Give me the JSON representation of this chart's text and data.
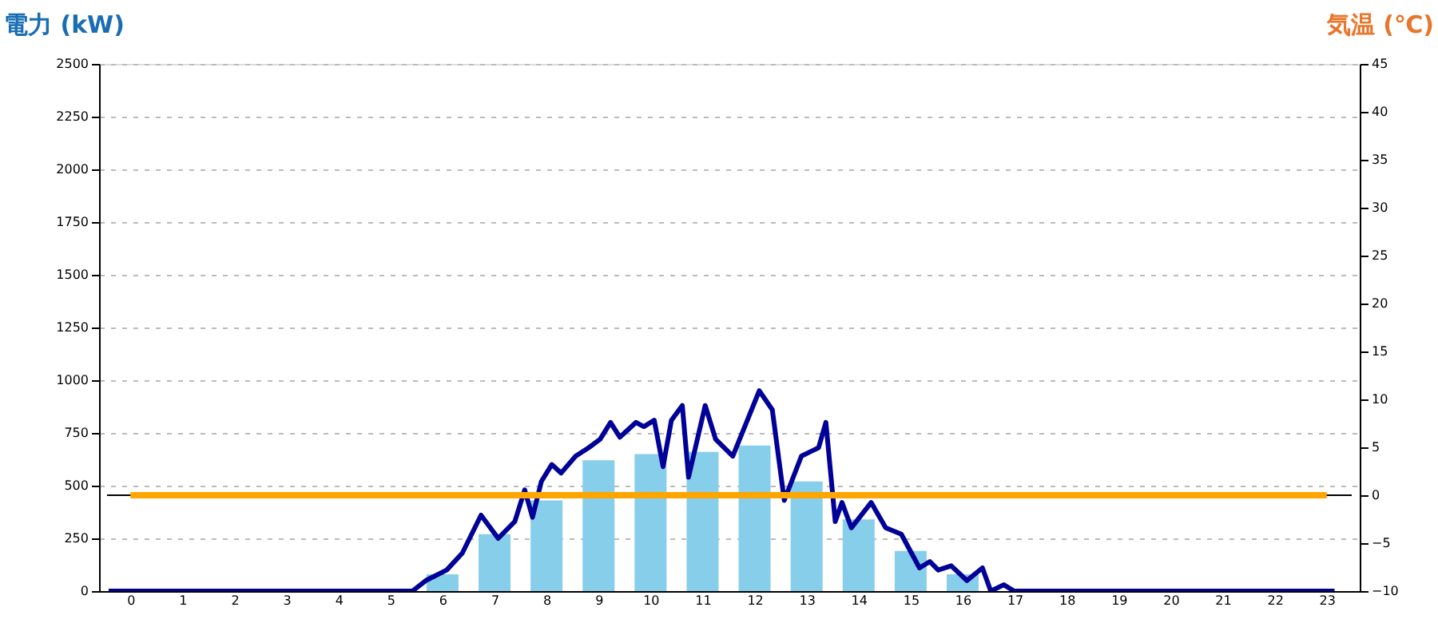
{
  "chart_data": {
    "type": "bar",
    "ylabel": "電力 (kW)",
    "y2label": "気温 (℃)",
    "xlim": [
      -0.45,
      23.48
    ],
    "xticks": [
      0,
      1,
      2,
      3,
      4,
      5,
      6,
      7,
      8,
      9,
      10,
      11,
      12,
      13,
      14,
      15,
      16,
      17,
      18,
      19,
      20,
      21,
      22,
      23
    ],
    "ylim": [
      0,
      2500
    ],
    "yticks": [
      0,
      250,
      500,
      750,
      1000,
      1250,
      1500,
      1750,
      2000,
      2250,
      2500
    ],
    "y2lim": [
      -10,
      45
    ],
    "y2ticks": [
      -10,
      -5,
      0,
      5,
      10,
      15,
      20,
      25,
      30,
      35,
      40,
      45
    ],
    "grid": "y",
    "ref_lines": [
      {
        "axis": "y2",
        "value": 0,
        "color": "#000000"
      }
    ],
    "series": [
      {
        "color": "#87ceeb",
        "x": [
          0,
          1,
          2,
          3,
          4,
          5,
          6,
          7,
          8,
          9,
          10,
          11,
          12,
          13,
          14,
          15,
          16,
          17,
          18,
          19,
          20,
          21,
          22,
          23
        ],
        "values": [
          0,
          0,
          0,
          0,
          0,
          0,
          80,
          270,
          430,
          620,
          650,
          660,
          690,
          520,
          340,
          190,
          80,
          null,
          0,
          0,
          0,
          0,
          0,
          0
        ]
      },
      {
        "type": "line",
        "color": "#000099",
        "x": [
          -0.42,
          4.67,
          5.42,
          5.68,
          6.08,
          6.38,
          6.74,
          7.07,
          7.39,
          7.58,
          7.73,
          7.9,
          8.1,
          8.28,
          8.56,
          8.81,
          9.03,
          9.23,
          9.41,
          9.72,
          9.87,
          10.07,
          10.24,
          10.4,
          10.61,
          10.73,
          11.05,
          11.25,
          11.58,
          12.09,
          12.34,
          12.57,
          12.9,
          13.23,
          13.37,
          13.55,
          13.68,
          13.86,
          14.24,
          14.52,
          14.82,
          15.17,
          15.37,
          15.53,
          15.78,
          16.08,
          16.38,
          16.54,
          16.79,
          16.99,
          23.15
        ],
        "values": [
          0,
          0,
          0,
          50,
          100,
          180,
          360,
          250,
          330,
          480,
          350,
          520,
          600,
          560,
          640,
          680,
          720,
          800,
          730,
          800,
          780,
          810,
          590,
          810,
          880,
          540,
          880,
          720,
          640,
          950,
          860,
          430,
          640,
          680,
          800,
          330,
          420,
          300,
          420,
          300,
          270,
          110,
          140,
          100,
          120,
          50,
          110,
          0,
          30,
          0,
          0
        ]
      },
      {
        "type": "line",
        "axis": "y2",
        "color": "#ffa500",
        "x": [
          0,
          1,
          2,
          3,
          4,
          5,
          6,
          7,
          8,
          9,
          10,
          11,
          12,
          13,
          14,
          15,
          16,
          17,
          18,
          19,
          20,
          21,
          22,
          23
        ],
        "values": [
          0,
          0,
          0,
          0,
          0,
          0,
          0,
          0,
          0,
          0,
          0,
          0,
          0,
          0,
          0,
          0,
          0,
          0,
          0,
          0,
          0,
          0,
          0,
          0
        ]
      }
    ]
  }
}
